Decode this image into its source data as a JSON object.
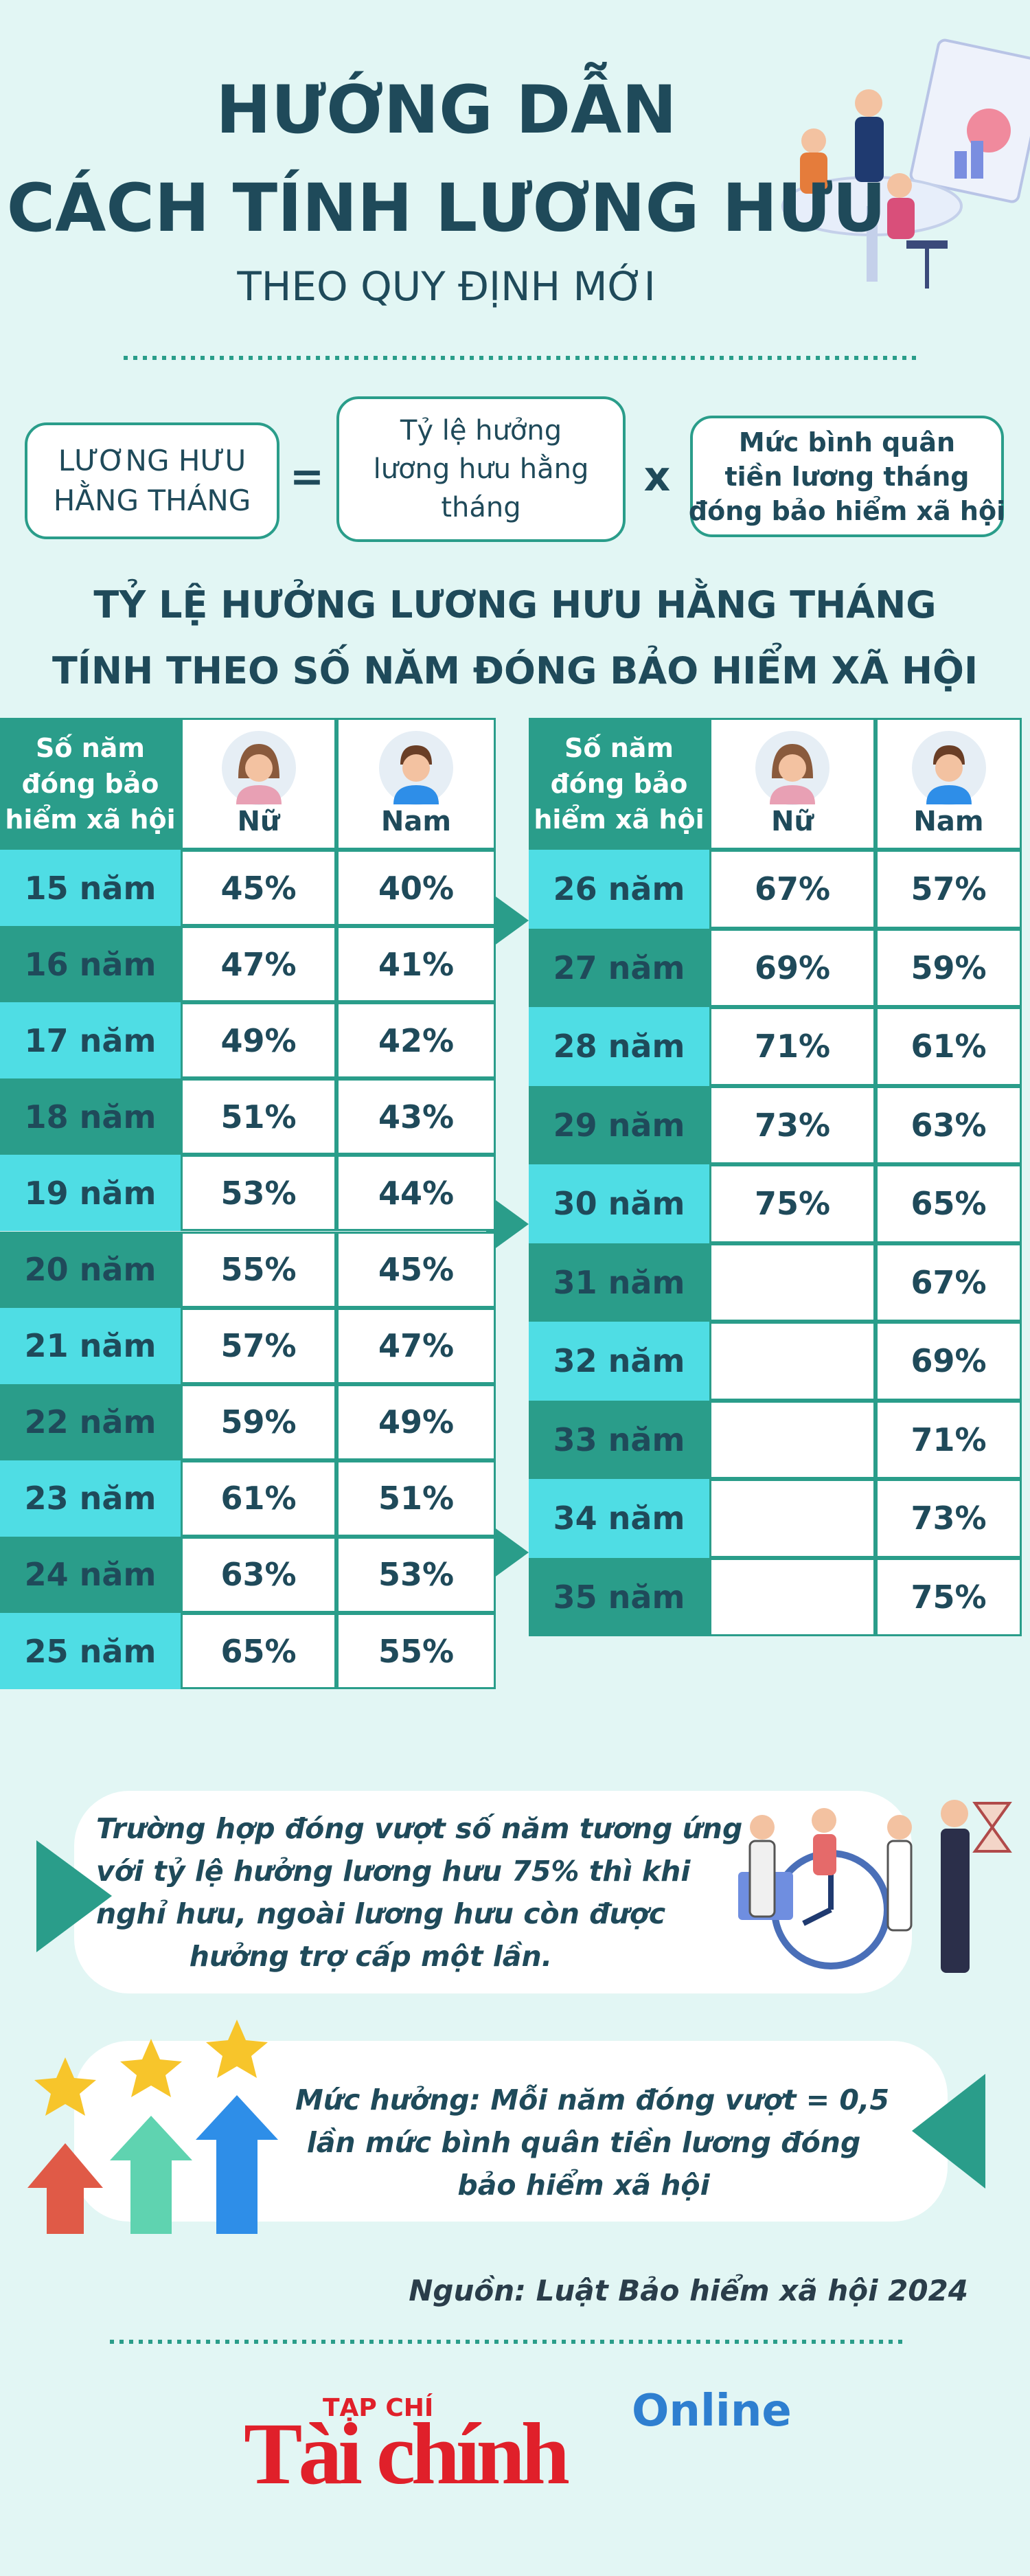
{
  "header": {
    "title_lines": [
      "HƯỚNG DẪN",
      "CÁCH TÍNH LƯƠNG HƯU"
    ],
    "subtitle": "THEO QUY ĐỊNH MỚI"
  },
  "formula": {
    "result_lines": [
      "LƯƠNG HƯU",
      "HẰNG THÁNG"
    ],
    "equals": "=",
    "factor1_lines": [
      "Tỷ lệ hưởng",
      "lương hưu hằng",
      "tháng"
    ],
    "times": "x",
    "factor2_lines": [
      "Mức bình quân",
      "tiền lương tháng",
      "đóng bảo hiểm xã hội"
    ]
  },
  "section_title_lines": [
    "TỶ LỆ HƯỞNG LƯƠNG HƯU HẰNG THÁNG",
    "TÍNH THEO SỐ NĂM ĐÓNG BẢO HIỂM XÃ HỘI"
  ],
  "tables": [
    {
      "header_label_lines": [
        "Số năm",
        "đóng bảo",
        "hiểm xã hội"
      ],
      "header_female": "Nữ",
      "header_male": "Nam",
      "rows": [
        [
          "15 năm",
          "45%",
          "40%"
        ],
        [
          "16 năm",
          "47%",
          "41%"
        ],
        [
          "17 năm",
          "49%",
          "42%"
        ],
        [
          "18 năm",
          "51%",
          "43%"
        ],
        [
          "19 năm",
          "53%",
          "44%"
        ],
        [
          "20 năm",
          "55%",
          "45%"
        ],
        [
          "21 năm",
          "57%",
          "47%"
        ],
        [
          "22 năm",
          "59%",
          "49%"
        ],
        [
          "23 năm",
          "61%",
          "51%"
        ],
        [
          "24 năm",
          "63%",
          "53%"
        ],
        [
          "25 năm",
          "65%",
          "55%"
        ]
      ]
    },
    {
      "header_label_lines": [
        "Số năm",
        "đóng bảo",
        "hiểm xã hội"
      ],
      "header_female": "Nữ",
      "header_male": "Nam",
      "rows": [
        [
          "26 năm",
          "67%",
          "57%"
        ],
        [
          "27 năm",
          "69%",
          "59%"
        ],
        [
          "28 năm",
          "71%",
          "61%"
        ],
        [
          "29 năm",
          "73%",
          "63%"
        ],
        [
          "30 năm",
          "75%",
          "65%"
        ],
        [
          "31 năm",
          null,
          "67%"
        ],
        [
          "32 năm",
          null,
          "69%"
        ],
        [
          "33 năm",
          null,
          "71%"
        ],
        [
          "34 năm",
          null,
          "73%"
        ],
        [
          "35 năm",
          null,
          "75%"
        ]
      ]
    }
  ],
  "notes": [
    {
      "lines": [
        "Trường hợp đóng vượt số năm tương ứng",
        "với tỷ lệ hưởng lương hưu 75% thì khi",
        "nghỉ hưu, ngoài lương hưu còn được",
        "hưởng trợ cấp một lần."
      ]
    },
    {
      "lines": [
        "Mức hưởng: Mỗi năm đóng vượt = 0,5",
        "lần mức bình quân tiền lương đóng",
        "bảo hiểm xã hội"
      ]
    }
  ],
  "source": "Nguồn: Luật Bảo hiểm xã hội 2024",
  "logo": {
    "small": "TẠP CHÍ",
    "main": "Tài chính",
    "online": "Online"
  }
}
